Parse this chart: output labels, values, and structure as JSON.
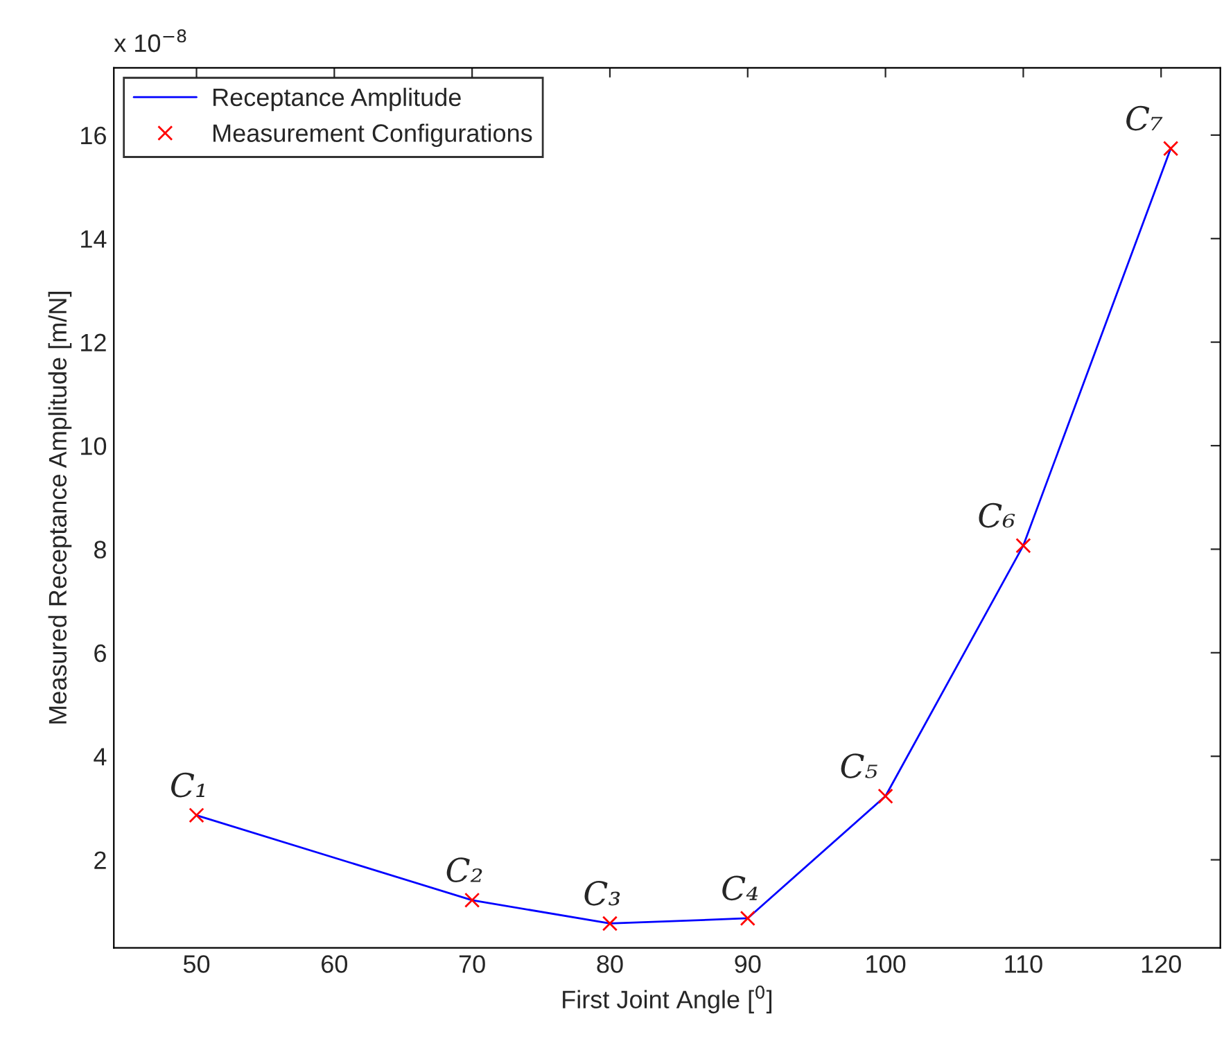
{
  "chart_data": {
    "type": "line",
    "xlabel": "First Joint Angle [$^{0}$]",
    "ylabel": "Measured Receptance Amplitude [m/N]",
    "x": [
      50,
      70,
      80,
      90,
      100,
      110,
      120.7
    ],
    "series": [
      {
        "name": "Receptance Amplitude",
        "color": "#0000ff",
        "marker": "none",
        "line_style": "solid",
        "values": [
          2.86,
          1.22,
          0.77,
          0.87,
          3.23,
          8.07,
          15.74
        ]
      },
      {
        "name": "Measurement Configurations",
        "type": "scatter",
        "color": "#ff0000",
        "marker": "cross",
        "values": [
          2.86,
          1.22,
          0.77,
          0.87,
          3.23,
          8.07,
          15.74
        ]
      }
    ],
    "xlim": [
      44,
      124.3
    ],
    "ylim": [
      0.3,
      17.3
    ],
    "xticks": [
      50,
      60,
      70,
      80,
      90,
      100,
      110,
      120
    ],
    "yticks": [
      2,
      4,
      6,
      8,
      10,
      12,
      14,
      16
    ],
    "grid": false,
    "legend": "top left",
    "annotations": [
      "x 10$^{−8}$",
      {
        "text": "C₁",
        "x": 50,
        "y": 2.86
      },
      {
        "text": "C₂",
        "x": 70,
        "y": 1.22
      },
      {
        "text": "C₃",
        "x": 80,
        "y": 0.77
      },
      {
        "text": "C₄",
        "x": 90,
        "y": 0.87
      },
      {
        "text": "C₅",
        "x": 100,
        "y": 3.23
      },
      {
        "text": "C₆",
        "x": 110,
        "y": 8.07
      },
      {
        "text": "C₇",
        "x": 120.7,
        "y": 15.74
      }
    ]
  }
}
